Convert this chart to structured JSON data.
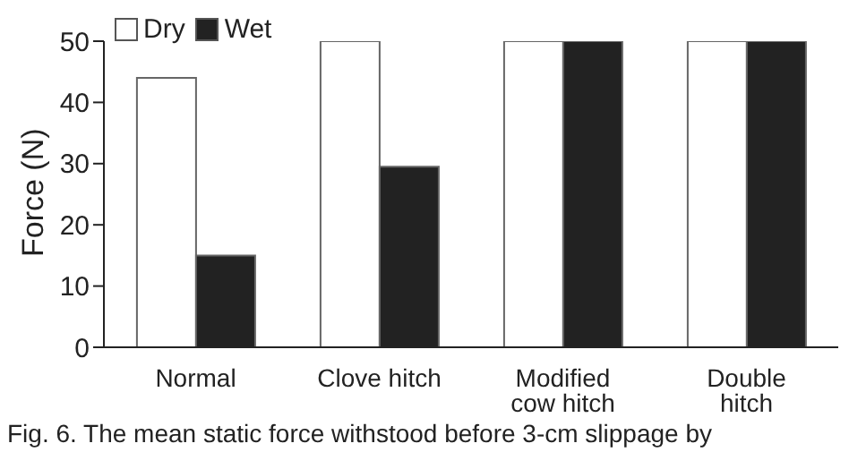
{
  "chart_data": {
    "type": "bar",
    "ylabel": "Force (N)",
    "categories": [
      "Normal",
      "Clove hitch",
      "Modified cow hitch",
      "Double hitch"
    ],
    "series": [
      {
        "name": "Dry",
        "color": "#ffffff",
        "values": [
          44,
          50,
          50,
          50
        ]
      },
      {
        "name": "Wet",
        "color": "#222222",
        "values": [
          15,
          29.5,
          50,
          50
        ]
      }
    ],
    "ylim": [
      0,
      50
    ],
    "yticks": [
      0,
      10,
      20,
      30,
      40,
      50
    ],
    "grid": false,
    "legend": "top left",
    "annotations": [
      "Fig. 6. The mean static force withstood before 3-cm slippage by"
    ]
  }
}
